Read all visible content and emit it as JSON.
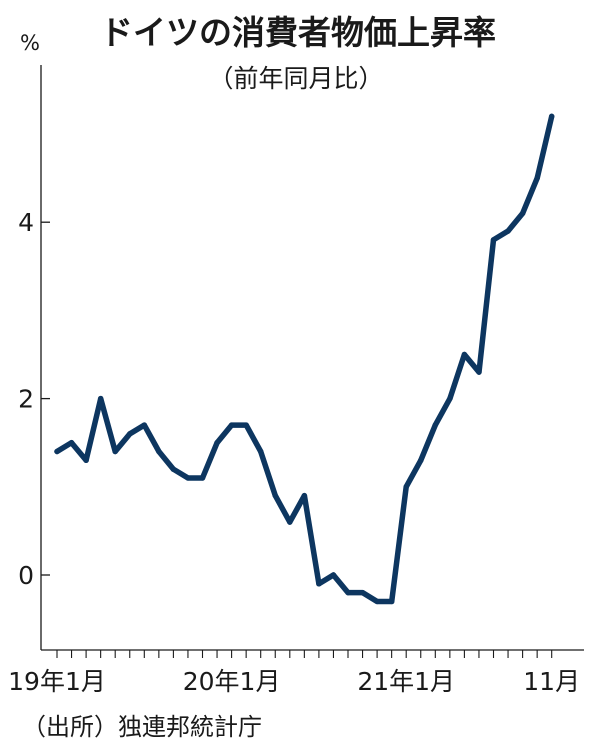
{
  "chart_data": {
    "type": "line",
    "title": "ドイツの消費者物価上昇率",
    "subtitle": "（前年同月比）",
    "unit_label": "%",
    "source": "（出所）独連邦統計庁",
    "ylim": [
      -0.85,
      5.95
    ],
    "yticks": [
      0,
      2,
      4
    ],
    "xlim": [
      0,
      35
    ],
    "xtick_labels": [
      {
        "index": 0,
        "label": "19年1月"
      },
      {
        "index": 12,
        "label": "20年1月"
      },
      {
        "index": 24,
        "label": "21年1月"
      },
      {
        "index": 34,
        "label": "11月"
      }
    ],
    "series": [
      {
        "color": "#0d3660",
        "values": [
          1.4,
          1.5,
          1.3,
          2.0,
          1.4,
          1.6,
          1.7,
          1.4,
          1.2,
          1.1,
          1.1,
          1.5,
          1.7,
          1.7,
          1.4,
          0.9,
          0.6,
          0.9,
          -0.1,
          0.0,
          -0.2,
          -0.2,
          -0.3,
          -0.3,
          1.0,
          1.3,
          1.7,
          2.0,
          2.5,
          2.3,
          3.8,
          3.9,
          4.1,
          4.5,
          5.2
        ]
      }
    ]
  }
}
